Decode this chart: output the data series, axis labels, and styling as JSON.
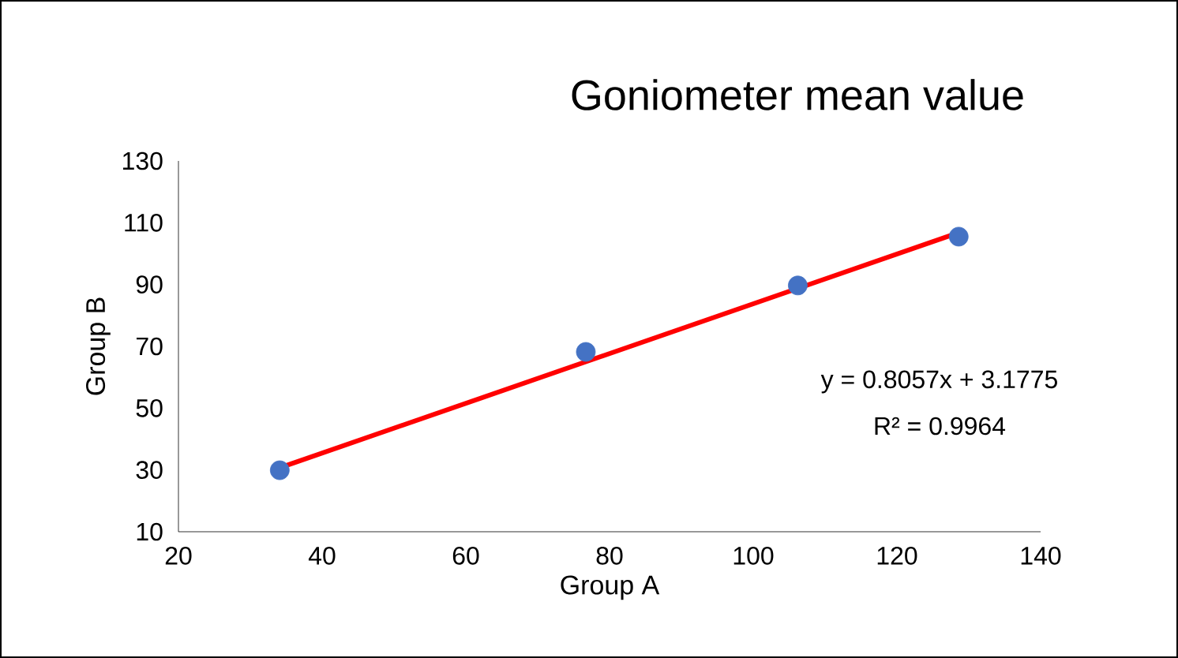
{
  "chart_data": {
    "type": "scatter",
    "title": "Goniometer mean value",
    "xlabel": "Group A",
    "ylabel": "Group B",
    "xlim": [
      20,
      140
    ],
    "xticks": [
      20,
      40,
      60,
      80,
      100,
      120,
      140
    ],
    "ylim": [
      10,
      130
    ],
    "yticks": [
      10,
      30,
      50,
      70,
      90,
      110,
      130
    ],
    "grid": false,
    "series": [
      {
        "color": "#4472c4",
        "marker": "circle",
        "x": [
          34.1,
          76.7,
          106.2,
          128.6
        ],
        "values": [
          29.9,
          68.2,
          89.7,
          105.5
        ]
      },
      {
        "type": "line",
        "color": "#ff0000",
        "marker": "none",
        "x": [
          34.1,
          128.6
        ],
        "values": [
          30.7,
          106.8
        ]
      }
    ],
    "annotations": [
      "y = 0.8057x + 3.1775",
      "R² = 0.9964"
    ]
  }
}
